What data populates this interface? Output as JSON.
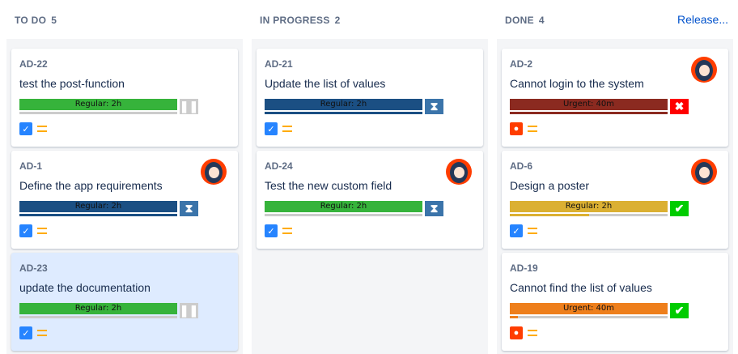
{
  "columns": [
    {
      "title": "TO DO",
      "count": "5",
      "cards": [
        {
          "key": "AD-22",
          "summary": "test the post-function",
          "sla": "Regular: 2h",
          "bar_color": "#36b33b",
          "progress": 0,
          "progress_color": "#ccc",
          "sla_icon": "pause-icon",
          "sla_bg": "#cccccc",
          "type": "task",
          "avatar": false,
          "selected": false
        },
        {
          "key": "AD-1",
          "summary": "Define the app requirements",
          "sla": "Regular: 2h",
          "bar_color": "#1b4f83",
          "progress": 100,
          "progress_color": "#1b4f83",
          "sla_icon": "hourglass-icon",
          "sla_bg": "#3b74aa",
          "type": "task",
          "avatar": true,
          "selected": false
        },
        {
          "key": "AD-23",
          "summary": "update the documentation",
          "sla": "Regular: 2h",
          "bar_color": "#36b33b",
          "progress": 0,
          "progress_color": "#ccc",
          "sla_icon": "pause-icon",
          "sla_bg": "#cccccc",
          "type": "task",
          "avatar": false,
          "selected": true
        }
      ]
    },
    {
      "title": "IN PROGRESS",
      "count": "2",
      "cards": [
        {
          "key": "AD-21",
          "summary": "Update the list of values",
          "sla": "Regular: 2h",
          "bar_color": "#1b4f83",
          "progress": 100,
          "progress_color": "#1b4f83",
          "sla_icon": "hourglass-icon",
          "sla_bg": "#3b74aa",
          "type": "task",
          "avatar": false,
          "selected": false
        },
        {
          "key": "AD-24",
          "summary": "Test the new custom field",
          "sla": "Regular: 2h",
          "bar_color": "#36b33b",
          "progress": 0,
          "progress_color": "#ccc",
          "sla_icon": "hourglass-icon",
          "sla_bg": "#3b74aa",
          "type": "task",
          "avatar": true,
          "selected": false
        }
      ]
    },
    {
      "title": "DONE",
      "count": "4",
      "release": "Release...",
      "cards": [
        {
          "key": "AD-2",
          "summary": "Cannot login to the system",
          "sla": "Urgent: 40m",
          "bar_color": "#8b2a20",
          "progress": 100,
          "progress_color": "#8b2a20",
          "sla_icon": "x-icon",
          "sla_bg": "#ff0000",
          "type": "bug",
          "avatar": true,
          "selected": false
        },
        {
          "key": "AD-6",
          "summary": "Design a poster",
          "sla": "Regular: 2h",
          "bar_color": "#dbb032",
          "progress": 50,
          "progress_color": "#dbb032",
          "sla_icon": "check-icon",
          "sla_bg": "#00cc00",
          "type": "task",
          "avatar": true,
          "selected": false
        },
        {
          "key": "AD-19",
          "summary": "Cannot find the list of values",
          "sla": "Urgent: 40m",
          "bar_color": "#ee7f1c",
          "progress": 5,
          "progress_color": "#ee7f1c",
          "sla_icon": "check-icon",
          "sla_bg": "#00cc00",
          "type": "bug",
          "avatar": false,
          "selected": false
        }
      ]
    }
  ]
}
